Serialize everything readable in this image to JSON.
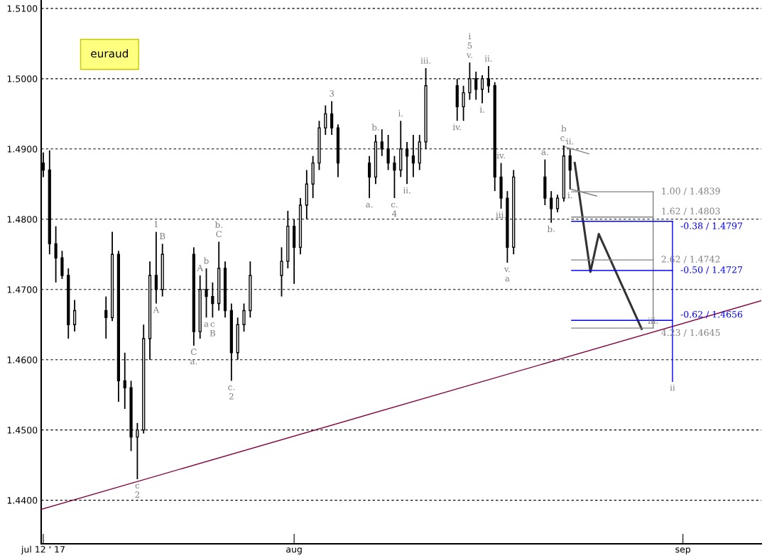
{
  "chart_data": {
    "type": "candlestick",
    "title": "euraud",
    "x": [
      "2017-07-12T00:00",
      "2017-07-12T12:00",
      "2017-07-13T00:00",
      "2017-07-13T12:00",
      "2017-07-14T00:00",
      "2017-07-14T12:00",
      "2017-07-17T00:00",
      "2017-07-17T12:00",
      "2017-07-18T00:00",
      "2017-07-18T12:00",
      "2017-07-19T00:00",
      "2017-07-19T12:00",
      "2017-07-20T00:00",
      "2017-07-20T12:00",
      "2017-07-21T00:00",
      "2017-07-21T12:00",
      "2017-07-24T00:00",
      "2017-07-24T12:00",
      "2017-07-25T00:00",
      "2017-07-25T12:00",
      "2017-07-26T00:00",
      "2017-07-26T12:00",
      "2017-07-27T00:00",
      "2017-07-27T12:00",
      "2017-07-28T00:00",
      "2017-07-28T12:00",
      "2017-07-31T00:00",
      "2017-07-31T12:00",
      "2017-08-01T00:00",
      "2017-08-01T12:00",
      "2017-08-02T00:00",
      "2017-08-02T12:00",
      "2017-08-03T00:00",
      "2017-08-03T12:00",
      "2017-08-04T00:00",
      "2017-08-04T12:00",
      "2017-08-07T00:00",
      "2017-08-07T12:00",
      "2017-08-08T00:00",
      "2017-08-08T12:00",
      "2017-08-09T00:00",
      "2017-08-09T12:00",
      "2017-08-10T00:00",
      "2017-08-10T12:00",
      "2017-08-11T00:00",
      "2017-08-11T12:00",
      "2017-08-14T00:00",
      "2017-08-14T12:00",
      "2017-08-15T00:00",
      "2017-08-15T12:00",
      "2017-08-16T00:00",
      "2017-08-16T12:00",
      "2017-08-17T00:00",
      "2017-08-17T12:00",
      "2017-08-18T00:00",
      "2017-08-18T12:00",
      "2017-08-21T00:00",
      "2017-08-21T12:00",
      "2017-08-22T00:00",
      "2017-08-22T12:00",
      "2017-08-23T00:00"
    ],
    "ohlc": [
      [
        1.488,
        1.4895,
        1.486,
        1.487
      ],
      [
        1.487,
        1.4898,
        1.475,
        1.4765
      ],
      [
        1.4765,
        1.479,
        1.471,
        1.4745
      ],
      [
        1.4745,
        1.4755,
        1.4715,
        1.472
      ],
      [
        1.472,
        1.473,
        1.463,
        1.465
      ],
      [
        1.465,
        1.4685,
        1.464,
        1.467
      ],
      [
        1.467,
        1.469,
        1.463,
        1.466
      ],
      [
        1.466,
        1.4782,
        1.4655,
        1.475
      ],
      [
        1.475,
        1.4755,
        1.454,
        1.457
      ],
      [
        1.457,
        1.461,
        1.453,
        1.456
      ],
      [
        1.456,
        1.457,
        1.447,
        1.449
      ],
      [
        1.449,
        1.451,
        1.443,
        1.45
      ],
      [
        1.45,
        1.465,
        1.4495,
        1.463
      ],
      [
        1.463,
        1.474,
        1.46,
        1.472
      ],
      [
        1.472,
        1.4782,
        1.468,
        1.47
      ],
      [
        1.47,
        1.4765,
        1.469,
        1.475
      ],
      [
        1.475,
        1.476,
        1.462,
        1.464
      ],
      [
        1.464,
        1.472,
        1.463,
        1.47
      ],
      [
        1.47,
        1.473,
        1.466,
        1.469
      ],
      [
        1.469,
        1.471,
        1.466,
        1.468
      ],
      [
        1.468,
        1.4768,
        1.467,
        1.473
      ],
      [
        1.473,
        1.474,
        1.466,
        1.467
      ],
      [
        1.467,
        1.468,
        1.457,
        1.461
      ],
      [
        1.461,
        1.466,
        1.46,
        1.465
      ],
      [
        1.465,
        1.468,
        1.464,
        1.467
      ],
      [
        1.467,
        1.474,
        1.466,
        1.472
      ],
      [
        1.472,
        1.476,
        1.469,
        1.474
      ],
      [
        1.474,
        1.4812,
        1.473,
        1.479
      ],
      [
        1.479,
        1.48,
        1.4708,
        1.476
      ],
      [
        1.476,
        1.483,
        1.475,
        1.482
      ],
      [
        1.482,
        1.487,
        1.48,
        1.485
      ],
      [
        1.485,
        1.489,
        1.483,
        1.488
      ],
      [
        1.488,
        1.494,
        1.487,
        1.493
      ],
      [
        1.493,
        1.4962,
        1.492,
        1.495
      ],
      [
        1.495,
        1.4968,
        1.492,
        1.493
      ],
      [
        1.493,
        1.4935,
        1.486,
        1.488
      ],
      [
        1.488,
        1.489,
        1.483,
        1.486
      ],
      [
        1.486,
        1.492,
        1.485,
        1.491
      ],
      [
        1.491,
        1.4928,
        1.489,
        1.49
      ],
      [
        1.49,
        1.492,
        1.487,
        1.488
      ],
      [
        1.488,
        1.489,
        1.483,
        1.487
      ],
      [
        1.487,
        1.494,
        1.486,
        1.49
      ],
      [
        1.49,
        1.491,
        1.485,
        1.489
      ],
      [
        1.489,
        1.492,
        1.486,
        1.488
      ],
      [
        1.488,
        1.492,
        1.487,
        1.491
      ],
      [
        1.491,
        1.5015,
        1.49,
        1.499
      ],
      [
        1.499,
        1.5,
        1.494,
        1.496
      ],
      [
        1.496,
        1.499,
        1.494,
        1.498
      ],
      [
        1.498,
        1.5023,
        1.497,
        1.5
      ],
      [
        1.5,
        1.501,
        1.497,
        1.4985
      ],
      [
        1.4985,
        1.5005,
        1.4965,
        1.5
      ],
      [
        1.5,
        1.5018,
        1.498,
        1.499
      ],
      [
        1.499,
        1.4995,
        1.484,
        1.486
      ],
      [
        1.486,
        1.488,
        1.4815,
        1.483
      ],
      [
        1.483,
        1.484,
        1.4738,
        1.476
      ],
      [
        1.476,
        1.487,
        1.475,
        1.486
      ],
      [
        1.486,
        1.4885,
        1.482,
        1.483
      ],
      [
        1.483,
        1.484,
        1.4795,
        1.4815
      ],
      [
        1.4815,
        1.4835,
        1.481,
        1.483
      ],
      [
        1.483,
        1.4905,
        1.4825,
        1.489
      ],
      [
        1.489,
        1.49,
        1.4843,
        1.487
      ]
    ],
    "color": "#000000",
    "series": [
      {
        "type": "line",
        "color": "#800040",
        "x": [
          "2017-07-11T20:00",
          "2017-09-07T06:00"
        ],
        "values": [
          1.4387,
          1.4684
        ]
      },
      {
        "type": "line",
        "color": "#333333",
        "x": [
          "2017-08-23T09:00",
          "2017-08-24T15:00",
          "2017-08-25T07:00",
          "2017-08-28T17:00"
        ],
        "values": [
          1.488,
          1.4725,
          1.4779,
          1.4644
        ]
      },
      {
        "type": "line",
        "color": "#808080",
        "x": [
          "2017-08-22T10:00",
          "2017-08-24T12:00"
        ],
        "values": [
          1.4904,
          1.4893
        ]
      },
      {
        "type": "line",
        "color": "#808080",
        "x": [
          "2017-08-23T00:00",
          "2017-08-25T03:00"
        ],
        "values": [
          1.4843,
          1.4833
        ]
      },
      {
        "type": "line",
        "color": "#808080",
        "x": [
          "2017-08-23T03:00",
          "2017-08-29T15:00"
        ],
        "values": [
          1.4839,
          1.4839
        ],
        "value_labels": [
          null,
          "1.00 / 1.4839"
        ]
      },
      {
        "type": "line",
        "color": "#808080",
        "x": [
          "2017-08-23T03:00",
          "2017-08-29T15:00"
        ],
        "values": [
          1.4803,
          1.4803
        ],
        "value_labels": [
          null,
          "1.62 / 1.4803"
        ]
      },
      {
        "type": "line",
        "color": "#808080",
        "x": [
          "2017-08-23T03:00",
          "2017-08-29T15:00"
        ],
        "values": [
          1.4742,
          1.4742
        ],
        "value_labels": [
          null,
          "2.62 / 1.4742"
        ]
      },
      {
        "type": "line",
        "color": "#808080",
        "x": [
          "2017-08-23T03:00",
          "2017-08-29T15:00"
        ],
        "values": [
          1.4645,
          1.4645
        ],
        "value_labels": [
          null,
          "4.23 / 1.4645"
        ]
      },
      {
        "type": "line",
        "color": "#808080",
        "x": [
          "2017-08-29T15:00",
          "2017-08-29T15:00"
        ],
        "values": [
          1.4839,
          1.4645
        ]
      },
      {
        "type": "line",
        "color": "#0000ff",
        "x": [
          "2017-08-23T03:00",
          "2017-08-31T04:00"
        ],
        "values": [
          1.4797,
          1.4797
        ],
        "value_labels": [
          null,
          "-0.38 / 1.4797"
        ]
      },
      {
        "type": "line",
        "color": "#0000ff",
        "x": [
          "2017-08-23T03:00",
          "2017-08-31T04:00"
        ],
        "values": [
          1.4727,
          1.4727
        ],
        "value_labels": [
          null,
          "-0.50 / 1.4727"
        ]
      },
      {
        "type": "line",
        "color": "#0000ff",
        "x": [
          "2017-08-23T03:00",
          "2017-08-31T04:00"
        ],
        "values": [
          1.4656,
          1.4656
        ],
        "value_labels": [
          null,
          "-0.62 / 1.4656"
        ]
      },
      {
        "type": "line",
        "color": "#0000ff",
        "x": [
          "2017-08-31T04:00",
          "2017-08-31T04:00"
        ],
        "values": [
          1.4797,
          1.4569
        ]
      }
    ],
    "annotations": [
      {
        "text": "c",
        "x": "2017-07-19T12:00",
        "y": 1.443
      },
      {
        "text": "2",
        "x": "2017-07-19T12:00",
        "y": 1.443
      },
      {
        "text": "1",
        "x": "2017-07-21T00:00",
        "y": 1.4782
      },
      {
        "text": "A",
        "x": "2017-07-21T00:00",
        "y": 1.468
      },
      {
        "text": "B",
        "x": "2017-07-21T12:00",
        "y": 1.4765
      },
      {
        "text": "C",
        "x": "2017-07-24T00:00",
        "y": 1.462
      },
      {
        "text": "a.",
        "x": "2017-07-24T00:00",
        "y": 1.462
      },
      {
        "text": "A",
        "x": "2017-07-24T12:00",
        "y": 1.472
      },
      {
        "text": "b",
        "x": "2017-07-25T00:00",
        "y": 1.473
      },
      {
        "text": "a",
        "x": "2017-07-25T00:00",
        "y": 1.466
      },
      {
        "text": "c",
        "x": "2017-07-25T12:00",
        "y": 1.466
      },
      {
        "text": "B",
        "x": "2017-07-25T12:00",
        "y": 1.466
      },
      {
        "text": "C",
        "x": "2017-07-26T00:00",
        "y": 1.4768
      },
      {
        "text": "b.",
        "x": "2017-07-26T00:00",
        "y": 1.4768
      },
      {
        "text": "c.",
        "x": "2017-07-27T00:00",
        "y": 1.457
      },
      {
        "text": "2",
        "x": "2017-07-27T00:00",
        "y": 1.457
      },
      {
        "text": "3",
        "x": "2017-08-04T00:00",
        "y": 1.4968
      },
      {
        "text": "a.",
        "x": "2017-08-07T00:00",
        "y": 1.483
      },
      {
        "text": "b.",
        "x": "2017-08-07T12:00",
        "y": 1.492
      },
      {
        "text": "c.",
        "x": "2017-08-09T00:00",
        "y": 1.483
      },
      {
        "text": "4",
        "x": "2017-08-09T00:00",
        "y": 1.483
      },
      {
        "text": "i.",
        "x": "2017-08-09T12:00",
        "y": 1.494
      },
      {
        "text": "ii.",
        "x": "2017-08-10T00:00",
        "y": 1.485
      },
      {
        "text": "iii.",
        "x": "2017-08-11T12:00",
        "y": 1.5015
      },
      {
        "text": "iv.",
        "x": "2017-08-14T00:00",
        "y": 1.494
      },
      {
        "text": "v.",
        "x": "2017-08-15T00:00",
        "y": 1.5023
      },
      {
        "text": "5",
        "x": "2017-08-15T00:00",
        "y": 1.5023
      },
      {
        "text": "i",
        "x": "2017-08-15T00:00",
        "y": 1.5023
      },
      {
        "text": "i.",
        "x": "2017-08-16T00:00",
        "y": 1.4965
      },
      {
        "text": "ii.",
        "x": "2017-08-16T12:00",
        "y": 1.5018
      },
      {
        "text": "iv.",
        "x": "2017-08-17T12:00",
        "y": 1.488
      },
      {
        "text": "iii.",
        "x": "2017-08-17T12:00",
        "y": 1.4815
      },
      {
        "text": "v.",
        "x": "2017-08-18T00:00",
        "y": 1.4738
      },
      {
        "text": "a",
        "x": "2017-08-18T00:00",
        "y": 1.4738
      },
      {
        "text": "a.",
        "x": "2017-08-21T00:00",
        "y": 1.4885
      },
      {
        "text": "b.",
        "x": "2017-08-21T12:00",
        "y": 1.4795
      },
      {
        "text": "c.",
        "x": "2017-08-22T12:00",
        "y": 1.4905
      },
      {
        "text": "b",
        "x": "2017-08-22T12:00",
        "y": 1.4905
      },
      {
        "text": "ii.",
        "x": "2017-08-23T00:00",
        "y": 1.49
      },
      {
        "text": "i.",
        "x": "2017-08-23T00:00",
        "y": 1.4843
      },
      {
        "text": "iii.",
        "x": "2017-08-29T15:00",
        "y": 1.4645
      },
      {
        "text": "ii",
        "x": "2017-08-31T04:00",
        "y": 1.4569
      }
    ],
    "xlim": [
      "2017-07-11T20:00",
      "2017-09-07T06:00"
    ],
    "xticks": [
      {
        "value": "2017-07-12",
        "label": "jul 12 ' 17"
      },
      {
        "value": "2017-08-01",
        "label": "aug"
      },
      {
        "value": "2017-09-01",
        "label": "sep"
      }
    ],
    "ylim": [
      1.4338,
      1.5112
    ],
    "yticks": [
      {
        "value": 1.44,
        "label": "1.4400"
      },
      {
        "value": 1.45,
        "label": "1.4500"
      },
      {
        "value": 1.46,
        "label": "1.4600"
      },
      {
        "value": 1.47,
        "label": "1.4700"
      },
      {
        "value": 1.48,
        "label": "1.4800"
      },
      {
        "value": 1.49,
        "label": "1.4900"
      },
      {
        "value": 1.5,
        "label": "1.5000"
      },
      {
        "value": 1.51,
        "label": "1.5100"
      }
    ],
    "grid": "y",
    "marker": "none",
    "line_style": "solid"
  }
}
